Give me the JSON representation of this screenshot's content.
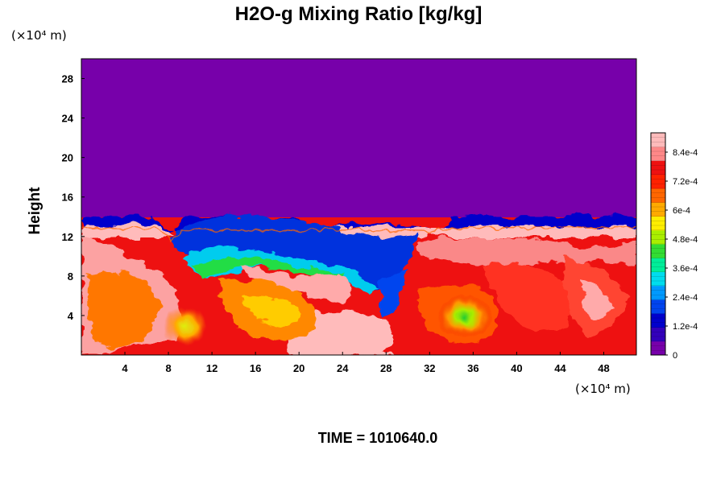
{
  "chart_data": {
    "type": "heatmap",
    "title": "H2O-g Mixing Ratio [kg/kg]",
    "xlabel": "",
    "ylabel": "Height",
    "x_unit": "(×10⁴ m)",
    "y_unit": "(×10⁴ m)",
    "xlim": [
      0,
      51
    ],
    "ylim": [
      0,
      30
    ],
    "x_ticks": [
      4,
      8,
      12,
      16,
      20,
      24,
      28,
      32,
      36,
      40,
      44,
      48
    ],
    "y_ticks": [
      4,
      8,
      12,
      16,
      20,
      24,
      28
    ],
    "colorbar": {
      "min": 0,
      "max": 0.00092,
      "tick_values": [
        0,
        0.00012,
        0.00024,
        0.00036,
        0.00048,
        0.0006,
        0.00072,
        0.00084
      ],
      "tick_labels": [
        "0",
        "1.2e-4",
        "2.4e-4",
        "3.6e-4",
        "4.8e-4",
        "6e-4",
        "7.2e-4",
        "8.4e-4"
      ],
      "colors": [
        "#7700aa",
        "#3300bb",
        "#0000cc",
        "#0044ee",
        "#0099ff",
        "#00ddee",
        "#00ee99",
        "#33dd33",
        "#aaee00",
        "#ffee00",
        "#ffaa00",
        "#ff6600",
        "#ff2200",
        "#ee1111",
        "#ff8888",
        "#ffbbbb"
      ]
    },
    "field_description": {
      "upper_region_value": 0,
      "moist_layer_top_height": 13,
      "lower_region_range": [
        0.0006,
        0.00092
      ],
      "notable_features": [
        {
          "kind": "dry intrusion",
          "x_range": [
            9,
            30
          ],
          "y_range": [
            7,
            13
          ],
          "value_range": [
            0,
            0.0003
          ]
        },
        {
          "kind": "moist vortex core",
          "x": 35,
          "y": 4,
          "value": 0.00045
        },
        {
          "kind": "moist vortex core",
          "x": 9.5,
          "y": 3,
          "value": 0.0006
        }
      ]
    },
    "grid": false
  },
  "footer": {
    "time_label": "TIME = 1010640.0"
  }
}
